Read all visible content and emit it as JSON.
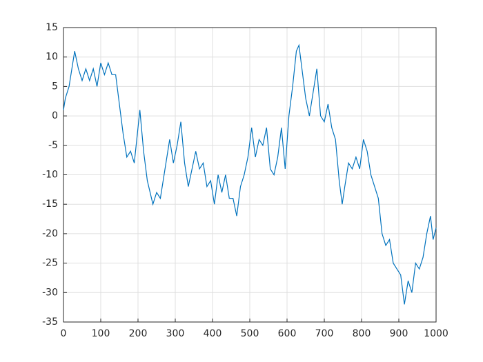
{
  "chart_data": {
    "type": "line",
    "x": [
      0,
      5,
      15,
      25,
      30,
      40,
      50,
      60,
      70,
      80,
      90,
      100,
      110,
      120,
      130,
      140,
      150,
      160,
      170,
      180,
      190,
      200,
      205,
      215,
      225,
      240,
      250,
      260,
      270,
      285,
      295,
      305,
      315,
      325,
      335,
      345,
      355,
      365,
      375,
      385,
      395,
      405,
      415,
      425,
      435,
      445,
      455,
      465,
      475,
      485,
      495,
      505,
      515,
      525,
      535,
      545,
      555,
      565,
      575,
      585,
      595,
      605,
      615,
      625,
      632,
      640,
      650,
      660,
      670,
      680,
      690,
      700,
      710,
      720,
      730,
      740,
      748,
      755,
      765,
      775,
      785,
      795,
      805,
      815,
      825,
      835,
      845,
      855,
      865,
      875,
      885,
      895,
      905,
      915,
      925,
      935,
      945,
      955,
      965,
      975,
      985,
      992,
      1000
    ],
    "series": [
      {
        "color": "#0072bd",
        "values": [
          1,
          3,
          5,
          9,
          11,
          8,
          6,
          8,
          6,
          8,
          5,
          9,
          7,
          9,
          7,
          7,
          2,
          -3,
          -7,
          -6,
          -8,
          -2,
          1,
          -6,
          -11,
          -15,
          -13,
          -14,
          -10,
          -4,
          -8,
          -5,
          -1,
          -8,
          -12,
          -9,
          -6,
          -9,
          -8,
          -12,
          -11,
          -15,
          -10,
          -13,
          -10,
          -14,
          -14,
          -17,
          -12,
          -10,
          -7,
          -2,
          -7,
          -4,
          -5,
          -2,
          -9,
          -10,
          -7,
          -2,
          -9,
          0,
          5,
          11,
          12,
          8,
          3,
          0,
          4,
          8,
          0,
          -1,
          2,
          -2,
          -4,
          -11,
          -15,
          -12,
          -8,
          -9,
          -7,
          -9,
          -4,
          -6,
          -10,
          -12,
          -14,
          -20,
          -22,
          -21,
          -25,
          -26,
          -27,
          -32,
          -28,
          -30,
          -25,
          -26,
          -24,
          -20,
          -17,
          -21,
          -19
        ]
      }
    ],
    "xlim": [
      0,
      1000
    ],
    "xticks": [
      0,
      100,
      200,
      300,
      400,
      500,
      600,
      700,
      800,
      900,
      1000
    ],
    "ylim": [
      -35,
      15
    ],
    "yticks": [
      -35,
      -30,
      -25,
      -20,
      -15,
      -10,
      -5,
      0,
      5,
      10,
      15
    ],
    "grid": true
  }
}
